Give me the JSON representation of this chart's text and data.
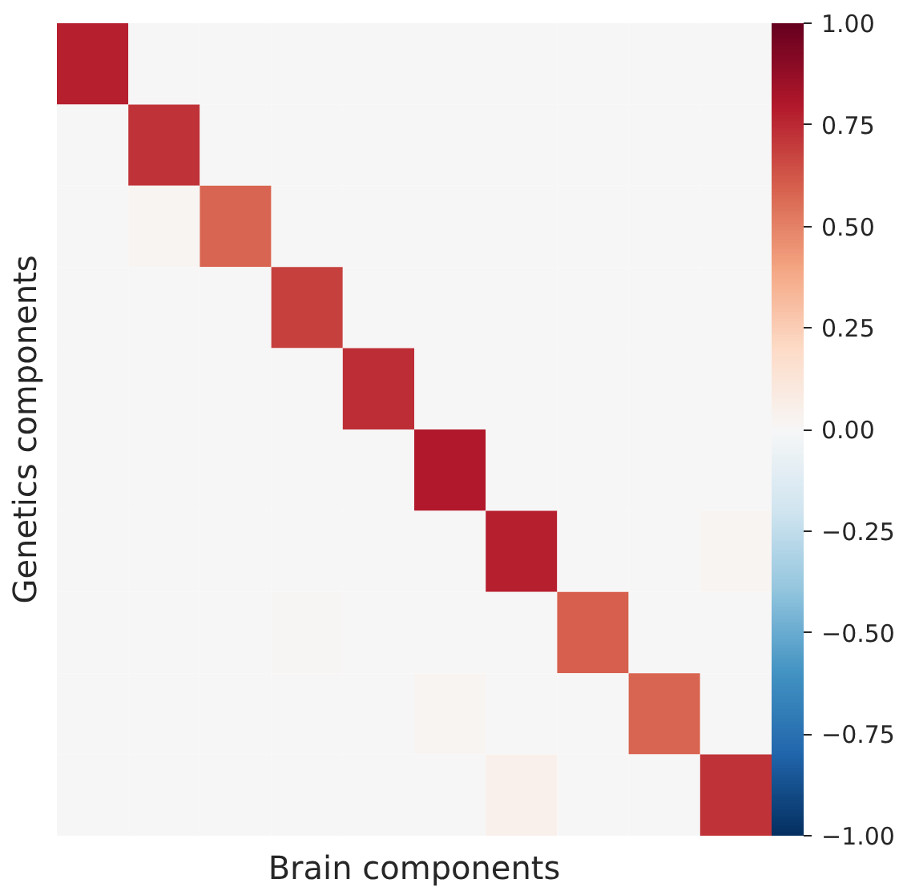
{
  "chart_data": {
    "type": "heatmap",
    "xlabel": "Brain components",
    "ylabel": "Genetics components",
    "categories": [
      null,
      null,
      null,
      null,
      null,
      null,
      null,
      null,
      null,
      null
    ],
    "y_categories": [
      null,
      null,
      null,
      null,
      null,
      null,
      null,
      null,
      null,
      null
    ],
    "cells": [
      [
        0.78,
        0,
        0,
        0,
        0,
        0,
        0,
        0,
        0,
        0
      ],
      [
        0,
        0.72,
        0,
        0,
        0,
        0,
        0,
        0,
        0,
        0
      ],
      [
        0,
        0.02,
        0.58,
        0,
        0,
        0,
        0,
        0,
        0,
        0
      ],
      [
        0,
        0,
        0,
        0.68,
        0,
        0,
        0,
        0,
        0,
        0
      ],
      [
        0,
        0,
        0,
        0,
        0.74,
        0,
        0,
        0,
        0,
        0
      ],
      [
        0,
        0,
        0,
        0,
        0,
        0.8,
        0,
        0,
        0,
        0
      ],
      [
        0,
        0,
        0,
        0,
        0,
        0,
        0.78,
        0,
        0,
        0.02
      ],
      [
        0,
        0,
        0,
        0.01,
        0,
        0,
        0,
        0.6,
        0,
        0
      ],
      [
        0,
        0,
        0,
        0,
        0,
        0.02,
        0,
        0,
        0.58,
        0
      ],
      [
        0,
        0,
        0,
        0,
        0,
        0,
        0.05,
        0,
        0,
        0.72
      ]
    ],
    "clim": [
      -1,
      1
    ],
    "cticks": [
      {
        "value": -1,
        "label": "−1.00"
      },
      {
        "value": -0.75,
        "label": "−0.75"
      },
      {
        "value": -0.5,
        "label": "−0.50"
      },
      {
        "value": -0.25,
        "label": "−0.25"
      },
      {
        "value": 0,
        "label": "0.00"
      },
      {
        "value": 0.25,
        "label": "0.25"
      },
      {
        "value": 0.5,
        "label": "0.50"
      },
      {
        "value": 0.75,
        "label": "0.75"
      },
      {
        "value": 1,
        "label": "1.00"
      }
    ]
  }
}
